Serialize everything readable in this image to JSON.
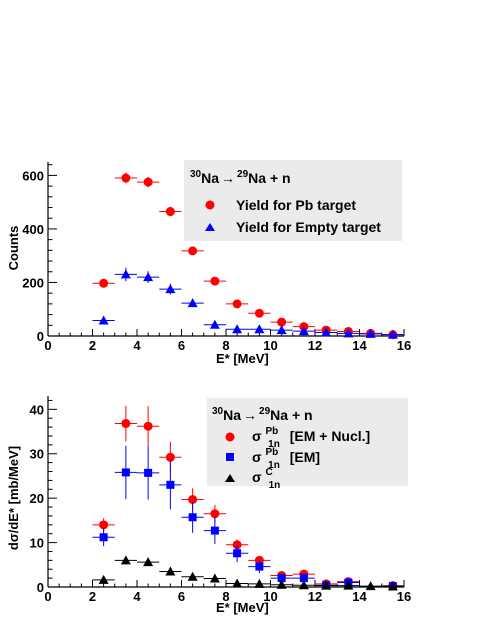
{
  "chart_data": [
    {
      "type": "scatter",
      "title": "",
      "xlabel": "E* [MeV]",
      "ylabel": "Counts",
      "xlim": [
        0,
        16
      ],
      "ylim": [
        0,
        650
      ],
      "xticks": [
        "0",
        "2",
        "4",
        "6",
        "8",
        "10",
        "12",
        "14",
        "16"
      ],
      "yticks": [
        "0",
        "200",
        "400",
        "600"
      ],
      "legend": {
        "placement": "top-right",
        "header": {
          "a": "30",
          "b": "Na",
          "c": "→",
          "d": "29",
          "e": "Na + n"
        },
        "entries": [
          "Yield for Pb target",
          "Yield for Empty target"
        ]
      },
      "series": [
        {
          "name": "Yield for Pb target",
          "color": "#ff0000",
          "marker": "circle",
          "x": [
            2.5,
            3.5,
            4.5,
            5.5,
            6.5,
            7.5,
            8.5,
            9.5,
            10.5,
            11.5,
            12.5,
            13.5,
            14.5,
            15.5
          ],
          "y": [
            197,
            590,
            575,
            465,
            318,
            205,
            120,
            85,
            52,
            35,
            22,
            17,
            10,
            5
          ],
          "yerr": [
            14,
            20,
            20,
            18,
            15,
            12,
            10,
            8,
            6,
            5,
            4,
            4,
            3,
            2
          ]
        },
        {
          "name": "Yield for Empty target",
          "color": "#0000ff",
          "marker": "triangle",
          "x": [
            2.5,
            3.5,
            4.5,
            5.5,
            6.5,
            7.5,
            8.5,
            9.5,
            10.5,
            11.5,
            12.5,
            13.5,
            14.5,
            15.5
          ],
          "y": [
            58,
            230,
            220,
            175,
            123,
            42,
            25,
            25,
            22,
            18,
            13,
            10,
            8,
            5
          ],
          "yerr": [
            7,
            25,
            22,
            20,
            15,
            6,
            4,
            4,
            4,
            3,
            3,
            3,
            2,
            2
          ]
        }
      ]
    },
    {
      "type": "scatter",
      "title": "",
      "xlabel": "E* [MeV]",
      "ylabel": "dσ/dE* [mb/MeV]",
      "xlim": [
        0,
        16
      ],
      "ylim": [
        0,
        43
      ],
      "xticks": [
        "0",
        "2",
        "4",
        "6",
        "8",
        "10",
        "12",
        "14",
        "16"
      ],
      "yticks": [
        "0",
        "10",
        "20",
        "30",
        "40"
      ],
      "legend": {
        "placement": "top-right",
        "header": {
          "a": "30",
          "b": "Na",
          "c": "→",
          "d": "29",
          "e": "Na + n"
        },
        "entries": [
          {
            "sym": "σ",
            "sup": "Pb",
            "sub": "1n",
            "text": "[EM + Nucl.]"
          },
          {
            "sym": "σ",
            "sup": "Pb",
            "sub": "1n",
            "text": "[EM]"
          },
          {
            "sym": "σ",
            "sup": "C",
            "sub": "1n",
            "text": ""
          }
        ]
      },
      "series": [
        {
          "name": "σ1n Pb [EM + Nucl.]",
          "color": "#ff0000",
          "marker": "circle",
          "x": [
            2.5,
            3.5,
            4.5,
            5.5,
            6.5,
            7.5,
            8.5,
            9.5,
            10.5,
            11.5,
            12.5,
            13.5,
            15.5
          ],
          "y": [
            14.0,
            36.8,
            36.2,
            29.2,
            19.7,
            16.5,
            9.5,
            6.0,
            2.6,
            2.9,
            0.7,
            1.2,
            0.3
          ],
          "yerr": [
            1.5,
            4.0,
            4.5,
            3.5,
            2.5,
            2.0,
            1.2,
            1.0,
            0.8,
            0.8,
            0.6,
            0.5,
            0.4
          ]
        },
        {
          "name": "σ1n Pb [EM]",
          "color": "#0000ff",
          "marker": "square",
          "x": [
            2.5,
            3.5,
            4.5,
            5.5,
            6.5,
            7.5,
            8.5,
            9.5,
            10.5,
            11.5,
            12.5,
            13.5,
            15.5
          ],
          "y": [
            11.2,
            25.8,
            25.7,
            23.0,
            15.7,
            12.7,
            7.6,
            4.6,
            2.0,
            2.0,
            0.4,
            1.0,
            0.2
          ],
          "yerr": [
            2.0,
            6.0,
            6.0,
            5.5,
            3.5,
            3.0,
            2.0,
            1.5,
            1.0,
            1.0,
            0.8,
            0.6,
            0.5
          ]
        },
        {
          "name": "σ1n C",
          "color": "#000000",
          "marker": "triangle",
          "x": [
            2.5,
            3.5,
            4.5,
            5.5,
            6.5,
            7.5,
            8.5,
            9.5,
            10.5,
            11.5,
            12.5,
            13.5,
            14.5,
            15.5
          ],
          "y": [
            1.6,
            6.0,
            5.6,
            3.5,
            2.3,
            1.9,
            0.8,
            0.7,
            0.5,
            0.4,
            0.3,
            0.3,
            0.2,
            0.1
          ],
          "yerr": [
            0.3,
            0.5,
            0.5,
            0.4,
            0.3,
            0.3,
            0.2,
            0.2,
            0.2,
            0.2,
            0.1,
            0.1,
            0.1,
            0.1
          ]
        }
      ]
    }
  ]
}
